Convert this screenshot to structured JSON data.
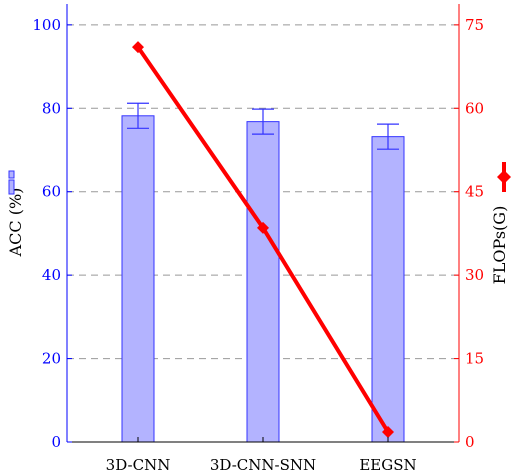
{
  "chart_data": {
    "type": "bar",
    "categories": [
      "3D-CNN",
      "3D-CNN-SNN",
      "EEGSN"
    ],
    "series": [
      {
        "type": "bar",
        "axis": "left",
        "values": [
          78.2,
          76.8,
          73.2
        ],
        "errors": [
          3.0,
          3.0,
          3.0
        ],
        "color": "#b3b3ff",
        "edge_color": "#3333ff"
      },
      {
        "type": "line",
        "axis": "right",
        "marker": "diamond",
        "values": [
          71.0,
          38.5,
          1.8
        ],
        "color": "#ff0000"
      }
    ],
    "ylabel": "ACC (%)",
    "y2label": "FLOPs(G)",
    "ylim": [
      0,
      105
    ],
    "y2lim": [
      0,
      78.75
    ],
    "yticks": [
      "0",
      "20",
      "40",
      "60",
      "80",
      "100"
    ],
    "y2ticks": [
      "0",
      "15",
      "30",
      "45",
      "60",
      "75"
    ],
    "grid": "horizontal-dashed",
    "left_axis_color": "#0000ff",
    "right_axis_color": "#ff0000"
  }
}
